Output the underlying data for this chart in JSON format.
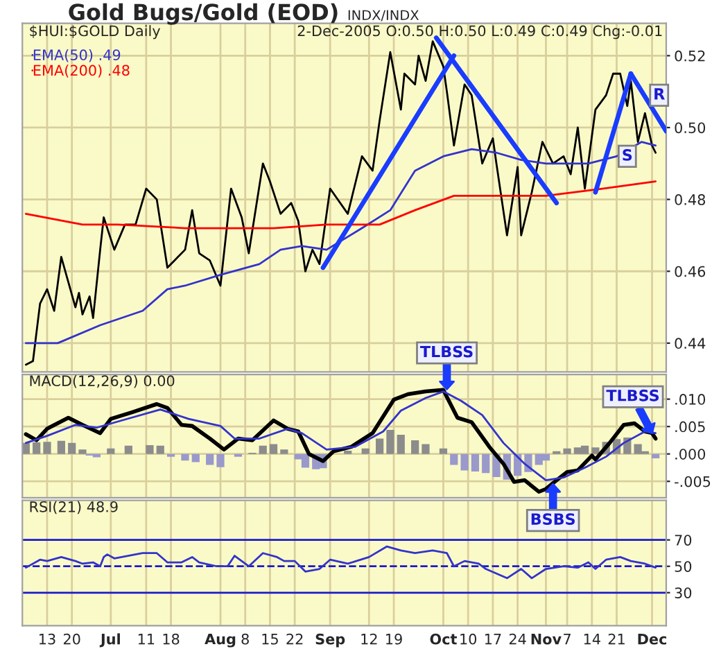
{
  "chart_data": [
    {
      "type": "line",
      "title": "Gold Bugs/Gold (EOD)",
      "subtitle": "INDX/INDX",
      "annotations": [
        "$HUI:$GOLD Daily",
        "2-Dec-2005 O:0.50 H:0.50 L:0.49 C:0.49 Chg:-0.01",
        {
          "text": "R",
          "x": "2005-12-03",
          "y": 0.509
        },
        {
          "text": "S",
          "x": "2005-11-24",
          "y": 0.492
        }
      ],
      "xlim": [
        "2005-06-06",
        "2005-12-05"
      ],
      "xticks": [
        {
          "value": "2005-06-13",
          "label": null
        },
        {
          "value": "2005-06-20",
          "label": null
        },
        {
          "value": "2005-07-01",
          "label": null
        },
        {
          "value": "2005-07-11",
          "label": null
        },
        {
          "value": "2005-07-18",
          "label": null
        },
        {
          "value": "2005-08-01",
          "label": null
        },
        {
          "value": "2005-08-08",
          "label": null
        },
        {
          "value": "2005-08-15",
          "label": null
        },
        {
          "value": "2005-08-22",
          "label": null
        },
        {
          "value": "2005-09-01",
          "label": null
        },
        {
          "value": "2005-09-12",
          "label": null
        },
        {
          "value": "2005-09-19",
          "label": null
        },
        {
          "value": "2005-10-03",
          "label": null
        },
        {
          "value": "2005-10-10",
          "label": null
        },
        {
          "value": "2005-10-17",
          "label": null
        },
        {
          "value": "2005-10-24",
          "label": null
        },
        {
          "value": "2005-11-01",
          "label": null
        },
        {
          "value": "2005-11-07",
          "label": null
        },
        {
          "value": "2005-11-14",
          "label": null
        },
        {
          "value": "2005-11-21",
          "label": null
        },
        {
          "value": "2005-12-01",
          "label": null
        }
      ],
      "ylim": [
        0.432,
        0.529
      ],
      "yticks": [
        0.44,
        0.46,
        0.48,
        {
          "value": 0.5,
          "label": "0.50"
        },
        0.52
      ],
      "grid": true,
      "legend": "top left",
      "tick_labels": "y",
      "series": [
        {
          "color": "#000000",
          "x": [
            "2005-06-07",
            "2005-06-09",
            "2005-06-11",
            "2005-06-13",
            "2005-06-15",
            "2005-06-17",
            "2005-06-19",
            "2005-06-21",
            "2005-06-22",
            "2005-06-23",
            "2005-06-25",
            "2005-06-26",
            "2005-06-28",
            "2005-06-29",
            "2005-07-02",
            "2005-07-05",
            "2005-07-08",
            "2005-07-11",
            "2005-07-14",
            "2005-07-17",
            "2005-07-19",
            "2005-07-22",
            "2005-07-24",
            "2005-07-26",
            "2005-07-29",
            "2005-08-01",
            "2005-08-04",
            "2005-08-07",
            "2005-08-09",
            "2005-08-13",
            "2005-08-15",
            "2005-08-18",
            "2005-08-21",
            "2005-08-23",
            "2005-08-25",
            "2005-08-27",
            "2005-08-29",
            "2005-09-01",
            "2005-09-06",
            "2005-09-10",
            "2005-09-13",
            "2005-09-15",
            "2005-09-18",
            "2005-09-21",
            "2005-09-22",
            "2005-09-25",
            "2005-09-26",
            "2005-09-28",
            "2005-09-30",
            "2005-10-03",
            "2005-10-04",
            "2005-10-06",
            "2005-10-09",
            "2005-10-11",
            "2005-10-14",
            "2005-10-17",
            "2005-10-18",
            "2005-10-21",
            "2005-10-24",
            "2005-10-25",
            "2005-10-28",
            "2005-10-31",
            "2005-11-03",
            "2005-11-06",
            "2005-11-08",
            "2005-11-10",
            "2005-11-12",
            "2005-11-15",
            "2005-11-18",
            "2005-11-20",
            "2005-11-22",
            "2005-11-24",
            "2005-11-25",
            "2005-11-27",
            "2005-11-29",
            "2005-12-01",
            "2005-12-02"
          ],
          "values": [
            0.434,
            0.435,
            0.451,
            0.455,
            0.449,
            0.464,
            0.457,
            0.45,
            0.454,
            0.448,
            0.453,
            0.447,
            0.466,
            0.475,
            0.466,
            0.473,
            0.473,
            0.483,
            0.48,
            0.461,
            0.463,
            0.466,
            0.477,
            0.465,
            0.463,
            0.456,
            0.483,
            0.475,
            0.465,
            0.49,
            0.485,
            0.476,
            0.479,
            0.474,
            0.46,
            0.466,
            0.462,
            0.483,
            0.476,
            0.492,
            0.488,
            0.502,
            0.521,
            0.505,
            0.515,
            0.512,
            0.52,
            0.513,
            0.524,
            0.517,
            0.51,
            0.495,
            0.512,
            0.509,
            0.49,
            0.497,
            0.49,
            0.47,
            0.489,
            0.47,
            0.482,
            0.496,
            0.49,
            0.492,
            0.487,
            0.5,
            0.483,
            0.505,
            0.509,
            0.515,
            0.515,
            0.506,
            0.513,
            0.496,
            0.504,
            0.495,
            0.493
          ]
        },
        {
          "name": "EMA(50) .49",
          "color": "#3333cc",
          "x": [
            "2005-06-07",
            "2005-06-16",
            "2005-06-28",
            "2005-07-10",
            "2005-07-17",
            "2005-07-22",
            "2005-08-01",
            "2005-08-12",
            "2005-08-18",
            "2005-08-24",
            "2005-08-31",
            "2005-09-10",
            "2005-09-18",
            "2005-09-25",
            "2005-10-03",
            "2005-10-11",
            "2005-10-18",
            "2005-10-25",
            "2005-11-01",
            "2005-11-13",
            "2005-11-21",
            "2005-11-28",
            "2005-12-02"
          ],
          "values": [
            0.44,
            0.44,
            0.445,
            0.449,
            0.455,
            0.456,
            0.459,
            0.462,
            0.466,
            0.467,
            0.466,
            0.472,
            0.477,
            0.488,
            0.492,
            0.494,
            0.493,
            0.491,
            0.49,
            0.49,
            0.492,
            0.496,
            0.495
          ]
        },
        {
          "name": "EMA(200) .48",
          "color": "#ff0000",
          "x": [
            "2005-06-07",
            "2005-06-23",
            "2005-07-03",
            "2005-07-22",
            "2005-08-02",
            "2005-08-16",
            "2005-08-31",
            "2005-09-15",
            "2005-09-25",
            "2005-10-06",
            "2005-10-18",
            "2005-11-01",
            "2005-11-17",
            "2005-12-02"
          ],
          "values": [
            0.476,
            0.473,
            0.473,
            0.472,
            0.472,
            0.472,
            0.473,
            0.473,
            0.477,
            0.481,
            0.481,
            0.481,
            0.483,
            0.485
          ]
        },
        {
          "color": "#1a3cff",
          "x": [
            "2005-08-30",
            "2005-10-06"
          ],
          "values": [
            0.461,
            0.52
          ]
        },
        {
          "color": "#1a3cff",
          "x": [
            "2005-10-01",
            "2005-11-04"
          ],
          "values": [
            0.525,
            0.479
          ]
        },
        {
          "color": "#1a3cff",
          "x": [
            "2005-11-15",
            "2005-11-25"
          ],
          "values": [
            0.482,
            0.515
          ]
        },
        {
          "color": "#1a3cff",
          "x": [
            "2005-11-25",
            "2005-12-05"
          ],
          "values": [
            0.515,
            0.499
          ]
        }
      ]
    },
    {
      "type": "line",
      "annotations": [
        "MACD(12,26,9) 0.00",
        {
          "text": "TLBSS",
          "x": "2005-10-04",
          "y": 0.0118
        },
        {
          "text": "BSBS",
          "x": "2005-11-03",
          "y": -0.0055
        },
        {
          "text": "TLBSS",
          "x": "2005-12-01",
          "y": 0.0038
        }
      ],
      "xlim": [
        "2005-06-06",
        "2005-12-05"
      ],
      "xticks": [
        {
          "value": "2005-06-13",
          "label": null
        },
        {
          "value": "2005-06-20",
          "label": null
        },
        {
          "value": "2005-07-01",
          "label": null
        },
        {
          "value": "2005-07-11",
          "label": null
        },
        {
          "value": "2005-07-18",
          "label": null
        },
        {
          "value": "2005-08-01",
          "label": null
        },
        {
          "value": "2005-08-08",
          "label": null
        },
        {
          "value": "2005-08-15",
          "label": null
        },
        {
          "value": "2005-08-22",
          "label": null
        },
        {
          "value": "2005-09-01",
          "label": null
        },
        {
          "value": "2005-09-12",
          "label": null
        },
        {
          "value": "2005-09-19",
          "label": null
        },
        {
          "value": "2005-10-03",
          "label": null
        },
        {
          "value": "2005-10-10",
          "label": null
        },
        {
          "value": "2005-10-17",
          "label": null
        },
        {
          "value": "2005-10-24",
          "label": null
        },
        {
          "value": "2005-11-01",
          "label": null
        },
        {
          "value": "2005-11-07",
          "label": null
        },
        {
          "value": "2005-11-14",
          "label": null
        },
        {
          "value": "2005-11-21",
          "label": null
        },
        {
          "value": "2005-12-01",
          "label": null
        }
      ],
      "ylim": [
        -0.008,
        0.0145
      ],
      "yticks": [
        {
          "value": -0.005,
          "label": "-.005"
        },
        {
          "value": 0,
          "label": ".000"
        },
        {
          "value": 0.005,
          "label": ".005"
        },
        {
          "value": 0.01,
          "label": ".010"
        }
      ],
      "grid": true,
      "tick_labels": "y",
      "series": [
        {
          "type": "bar",
          "x": [
            "2005-06-07",
            "2005-06-10",
            "2005-06-13",
            "2005-06-17",
            "2005-06-20",
            "2005-06-23",
            "2005-06-25",
            "2005-06-27",
            "2005-07-01",
            "2005-07-06",
            "2005-07-12",
            "2005-07-15",
            "2005-07-18",
            "2005-07-22",
            "2005-07-25",
            "2005-07-29",
            "2005-08-01",
            "2005-08-06",
            "2005-08-10",
            "2005-08-13",
            "2005-08-16",
            "2005-08-19",
            "2005-08-23",
            "2005-08-25",
            "2005-08-28",
            "2005-08-30",
            "2005-09-02",
            "2005-09-06",
            "2005-09-11",
            "2005-09-15",
            "2005-09-18",
            "2005-09-21",
            "2005-09-25",
            "2005-09-28",
            "2005-10-03",
            "2005-10-06",
            "2005-10-09",
            "2005-10-12",
            "2005-10-15",
            "2005-10-18",
            "2005-10-21",
            "2005-10-24",
            "2005-10-27",
            "2005-10-30",
            "2005-11-01",
            "2005-11-04",
            "2005-11-07",
            "2005-11-10",
            "2005-11-12",
            "2005-11-15",
            "2005-11-18",
            "2005-11-21",
            "2005-11-24",
            "2005-11-27",
            "2005-11-29",
            "2005-12-02"
          ],
          "values": [
            0.002,
            0.0021,
            0.0022,
            0.0024,
            0.002,
            0.0008,
            -0.0003,
            -0.0006,
            0.001,
            0.0015,
            0.0016,
            0.0015,
            -0.0005,
            -0.0012,
            -0.0015,
            -0.002,
            -0.0024,
            -0.0005,
            0.0002,
            0.0015,
            0.0018,
            0.0008,
            -0.001,
            -0.0025,
            -0.0028,
            -0.0026,
            null,
            0.0006,
            0.001,
            0.0028,
            0.0044,
            0.0035,
            0.0025,
            0.0018,
            0.001,
            -0.002,
            -0.003,
            -0.0032,
            -0.0035,
            -0.0042,
            -0.0047,
            -0.004,
            -0.0033,
            -0.002,
            -0.0012,
            0.0005,
            0.001,
            0.0012,
            0.0015,
            0.0012,
            0.0022,
            0.0027,
            0.003,
            0.0018,
            0.0005,
            -0.0008
          ],
          "colors": [
            "#8c8c8c",
            "#8c8c8c",
            "#8c8c8c",
            "#8c8c8c",
            "#8c8c8c",
            "#8c8c8c",
            "#9999cc",
            "#9999cc",
            "#8c8c8c",
            "#8c8c8c",
            "#8c8c8c",
            "#8c8c8c",
            "#9999cc",
            "#9999cc",
            "#9999cc",
            "#9999cc",
            "#9999cc",
            "#9999cc",
            "#8c8c8c",
            "#8c8c8c",
            "#8c8c8c",
            "#8c8c8c",
            "#9999cc",
            "#9999cc",
            "#9999cc",
            "#9999cc",
            "#8c8c8c",
            "#8c8c8c",
            "#8c8c8c",
            "#8c8c8c",
            "#8c8c8c",
            "#8c8c8c",
            "#8c8c8c",
            "#8c8c8c",
            "#8c8c8c",
            "#9999cc",
            "#9999cc",
            "#9999cc",
            "#9999cc",
            "#9999cc",
            "#9999cc",
            "#9999cc",
            "#9999cc",
            "#9999cc",
            "#9999cc",
            "#8c8c8c",
            "#8c8c8c",
            "#8c8c8c",
            "#8c8c8c",
            "#8c8c8c",
            "#8c8c8c",
            "#8c8c8c",
            "#8c8c8c",
            "#8c8c8c",
            "#8c8c8c",
            "#9999cc"
          ]
        },
        {
          "color": "#000000",
          "x": [
            "2005-06-07",
            "2005-06-10",
            "2005-06-13",
            "2005-06-19",
            "2005-06-23",
            "2005-06-28",
            "2005-07-01",
            "2005-07-07",
            "2005-07-14",
            "2005-07-17",
            "2005-07-21",
            "2005-07-24",
            "2005-07-29",
            "2005-08-02",
            "2005-08-06",
            "2005-08-10",
            "2005-08-16",
            "2005-08-20",
            "2005-08-23",
            "2005-08-26",
            "2005-08-30",
            "2005-09-02",
            "2005-09-07",
            "2005-09-13",
            "2005-09-19",
            "2005-09-23",
            "2005-09-28",
            "2005-10-03",
            "2005-10-04",
            "2005-10-07",
            "2005-10-11",
            "2005-10-16",
            "2005-10-20",
            "2005-10-23",
            "2005-10-26",
            "2005-10-30",
            "2005-11-01",
            "2005-11-04",
            "2005-11-07",
            "2005-11-10",
            "2005-11-14",
            "2005-11-15",
            "2005-11-19",
            "2005-11-23",
            "2005-11-26",
            "2005-11-29",
            "2005-12-01",
            "2005-12-02"
          ],
          "values": [
            0.0036,
            0.0025,
            0.0046,
            0.0066,
            0.0053,
            0.0038,
            0.0064,
            0.0076,
            0.0091,
            0.0084,
            0.0053,
            0.0051,
            0.0028,
            0.0008,
            0.0028,
            0.0025,
            0.0061,
            0.0046,
            0.0041,
            0.0,
            -0.0013,
            0.0005,
            0.0013,
            0.0038,
            0.0099,
            0.0109,
            0.0114,
            0.0117,
            0.0104,
            0.0066,
            0.0058,
            0.0013,
            -0.0018,
            -0.0051,
            -0.0048,
            -0.0069,
            -0.0064,
            -0.0048,
            -0.0033,
            -0.003,
            -0.0003,
            -0.001,
            0.002,
            0.0053,
            0.0056,
            0.0041,
            0.0038,
            0.0028
          ]
        },
        {
          "color": "#3333cc",
          "x": [
            "2005-06-07",
            "2005-06-13",
            "2005-06-21",
            "2005-06-27",
            "2005-07-04",
            "2005-07-15",
            "2005-07-23",
            "2005-08-01",
            "2005-08-05",
            "2005-08-12",
            "2005-08-20",
            "2005-08-24",
            "2005-08-31",
            "2005-09-08",
            "2005-09-16",
            "2005-09-21",
            "2005-09-28",
            "2005-10-03",
            "2005-10-08",
            "2005-10-14",
            "2005-10-20",
            "2005-10-26",
            "2005-11-01",
            "2005-11-06",
            "2005-11-12",
            "2005-11-18",
            "2005-11-23",
            "2005-11-29",
            "2005-12-02"
          ],
          "values": [
            0.002,
            0.0033,
            0.0053,
            0.0048,
            0.0061,
            0.0081,
            0.0064,
            0.0051,
            0.0028,
            0.0028,
            0.0046,
            0.0038,
            0.0008,
            0.0013,
            0.0041,
            0.0079,
            0.0102,
            0.0114,
            0.0097,
            0.0071,
            0.002,
            -0.0018,
            -0.0048,
            -0.0043,
            -0.0025,
            -0.0005,
            0.002,
            0.0041,
            0.0038
          ]
        }
      ]
    },
    {
      "type": "line",
      "annotations": [
        "RSI(21) 48.9"
      ],
      "xlim": [
        "2005-06-06",
        "2005-12-05"
      ],
      "xticks": [
        {
          "value": "2005-06-13",
          "label": "13"
        },
        {
          "value": "2005-06-20",
          "label": "20"
        },
        {
          "value": "2005-07-01",
          "label": "Jul"
        },
        {
          "value": "2005-07-11",
          "label": "11"
        },
        {
          "value": "2005-07-18",
          "label": "18"
        },
        {
          "value": "2005-08-01",
          "label": "Aug"
        },
        {
          "value": "2005-08-08",
          "label": "8"
        },
        {
          "value": "2005-08-15",
          "label": "15"
        },
        {
          "value": "2005-08-22",
          "label": "22"
        },
        {
          "value": "2005-09-01",
          "label": "Sep"
        },
        {
          "value": "2005-09-12",
          "label": "12"
        },
        {
          "value": "2005-09-19",
          "label": "19"
        },
        {
          "value": "2005-10-03",
          "label": "Oct"
        },
        {
          "value": "2005-10-10",
          "label": "10"
        },
        {
          "value": "2005-10-17",
          "label": "17"
        },
        {
          "value": "2005-10-24",
          "label": "24"
        },
        {
          "value": "2005-11-01",
          "label": "Nov"
        },
        {
          "value": "2005-11-07",
          "label": "7"
        },
        {
          "value": "2005-11-14",
          "label": "14"
        },
        {
          "value": "2005-11-21",
          "label": "21"
        },
        {
          "value": "2005-12-01",
          "label": "Dec"
        }
      ],
      "ylim": [
        5,
        100
      ],
      "yticks": [
        30,
        50,
        70
      ],
      "grid": "x",
      "ref_lines": [
        {
          "axis": "y",
          "value": 70,
          "color": "#1a1acc",
          "line_style": "solid"
        },
        {
          "axis": "y",
          "value": 50,
          "color": "#1a1acc",
          "line_style": "dashed"
        },
        {
          "axis": "y",
          "value": 30,
          "color": "#1a1acc",
          "line_style": "solid"
        }
      ],
      "series": [
        {
          "color": "#3333cc",
          "x": [
            "2005-06-07",
            "2005-06-11",
            "2005-06-13",
            "2005-06-17",
            "2005-06-21",
            "2005-06-23",
            "2005-06-26",
            "2005-06-28",
            "2005-06-29",
            "2005-06-30",
            "2005-07-02",
            "2005-07-10",
            "2005-07-14",
            "2005-07-17",
            "2005-07-21",
            "2005-07-24",
            "2005-07-26",
            "2005-07-31",
            "2005-08-03",
            "2005-08-05",
            "2005-08-09",
            "2005-08-13",
            "2005-08-17",
            "2005-08-19",
            "2005-08-22",
            "2005-08-25",
            "2005-08-29",
            "2005-09-01",
            "2005-09-06",
            "2005-09-12",
            "2005-09-17",
            "2005-09-21",
            "2005-09-25",
            "2005-09-30",
            "2005-10-04",
            "2005-10-06",
            "2005-10-09",
            "2005-10-13",
            "2005-10-15",
            "2005-10-21",
            "2005-10-25",
            "2005-10-28",
            "2005-11-01",
            "2005-11-06",
            "2005-11-10",
            "2005-11-13",
            "2005-11-15",
            "2005-11-18",
            "2005-11-22",
            "2005-11-25",
            "2005-11-29",
            "2005-12-02"
          ],
          "values": [
            49,
            55,
            54,
            57,
            54,
            52,
            53,
            50,
            57,
            59,
            56,
            60,
            60,
            53,
            53,
            57,
            53,
            50,
            50,
            58,
            50,
            60,
            57,
            54,
            54,
            46,
            48,
            55,
            52,
            57,
            65,
            62,
            60,
            62,
            60,
            50,
            54,
            52,
            48,
            41,
            48,
            41,
            48,
            50,
            49,
            53,
            48,
            55,
            57,
            54,
            52,
            49
          ]
        }
      ]
    }
  ]
}
